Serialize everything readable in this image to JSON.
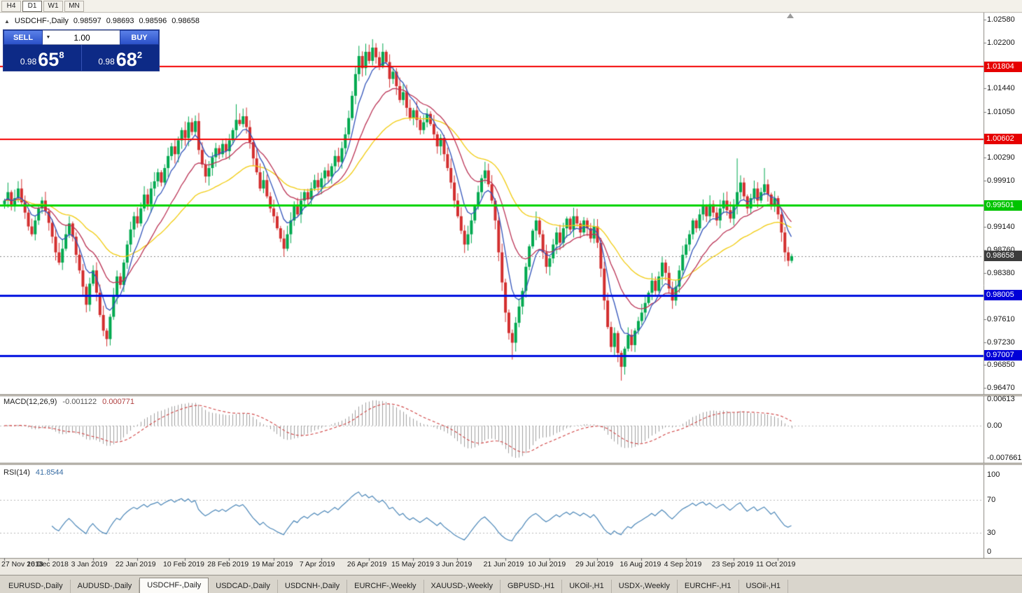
{
  "toolbar": {
    "periods": [
      {
        "label": "H4",
        "active": false
      },
      {
        "label": "D1",
        "active": true
      },
      {
        "label": "W1",
        "active": false
      },
      {
        "label": "MN",
        "active": false
      }
    ]
  },
  "icons": {
    "collapse": "▲",
    "dropdown": "▼"
  },
  "symbol_header": {
    "title": "USDCHF-,Daily",
    "open": "0.98597",
    "high": "0.98693",
    "low": "0.98596",
    "close": "0.98658"
  },
  "trade_panel": {
    "sell_label": "SELL",
    "buy_label": "BUY",
    "volume": "1.00",
    "sell_price": {
      "small": "0.98",
      "big": "65",
      "sup": "8"
    },
    "buy_price": {
      "small": "0.98",
      "big": "68",
      "sup": "2"
    }
  },
  "price_axis": {
    "ticks": [
      "1.02580",
      "1.02200",
      "1.01440",
      "1.01050",
      "1.00290",
      "0.99910",
      "0.99140",
      "0.98760",
      "0.98380",
      "0.97610",
      "0.97230",
      "0.96850",
      "0.96470"
    ],
    "badges": [
      {
        "value": "1.01804",
        "bg": "#e60000",
        "type": "resistance"
      },
      {
        "value": "1.00602",
        "bg": "#e60000",
        "type": "resistance"
      },
      {
        "value": "0.99501",
        "bg": "#00c400",
        "type": "pivot"
      },
      {
        "value": "0.98658",
        "bg": "#3c3c3c",
        "type": "current-price"
      },
      {
        "value": "0.98005",
        "bg": "#0000d8",
        "type": "support"
      },
      {
        "value": "0.97007",
        "bg": "#0000d8",
        "type": "support"
      }
    ]
  },
  "levels": [
    {
      "price": 1.01804,
      "color": "#f40000",
      "width": 2
    },
    {
      "price": 1.00602,
      "color": "#f40000",
      "width": 2
    },
    {
      "price": 0.99501,
      "color": "#00d400",
      "width": 3
    },
    {
      "price": 0.98005,
      "color": "#0010e0",
      "width": 3
    },
    {
      "price": 0.97007,
      "color": "#0010e0",
      "width": 3
    }
  ],
  "current_price": {
    "value": 0.98658,
    "label": "0.98658"
  },
  "macd_panel": {
    "label": "MACD(12,26,9)",
    "value_main": "-0.001122",
    "value_signal": "0.000771",
    "axis": [
      "0.00613",
      "0.00",
      "-0.0076612"
    ]
  },
  "rsi_panel": {
    "label": "RSI(14)",
    "value": "41.8544",
    "axis": [
      "100",
      "70",
      "30",
      "0"
    ],
    "levels": [
      70,
      30
    ]
  },
  "date_axis": {
    "labels": [
      {
        "text": "27 Nov 2018",
        "index": 0
      },
      {
        "text": "16 Dec 2018",
        "index": 13
      },
      {
        "text": "3 Jan 2019",
        "index": 26
      },
      {
        "text": "22 Jan 2019",
        "index": 39
      },
      {
        "text": "10 Feb 2019",
        "index": 53
      },
      {
        "text": "28 Feb 2019",
        "index": 66
      },
      {
        "text": "19 Mar 2019",
        "index": 79
      },
      {
        "text": "7 Apr 2019",
        "index": 93
      },
      {
        "text": "26 Apr 2019",
        "index": 107
      },
      {
        "text": "15 May 2019",
        "index": 120
      },
      {
        "text": "3 Jun 2019",
        "index": 133
      },
      {
        "text": "21 Jun 2019",
        "index": 147
      },
      {
        "text": "10 Jul 2019",
        "index": 160
      },
      {
        "text": "29 Jul 2019",
        "index": 174
      },
      {
        "text": "16 Aug 2019",
        "index": 187
      },
      {
        "text": "4 Sep 2019",
        "index": 200
      },
      {
        "text": "23 Sep 2019",
        "index": 214
      },
      {
        "text": "11 Oct 2019",
        "index": 227
      }
    ]
  },
  "tabs": {
    "items": [
      {
        "label": "EURUSD-,Daily",
        "active": false
      },
      {
        "label": "AUDUSD-,Daily",
        "active": false
      },
      {
        "label": "USDCHF-,Daily",
        "active": true
      },
      {
        "label": "USDCAD-,Daily",
        "active": false
      },
      {
        "label": "USDCNH-,Daily",
        "active": false
      },
      {
        "label": "EURCHF-,Weekly",
        "active": false
      },
      {
        "label": "XAUUSD-,Weekly",
        "active": false
      },
      {
        "label": "GBPUSD-,H1",
        "active": false
      },
      {
        "label": "UKOil-,H1",
        "active": false
      },
      {
        "label": "USDX-,Weekly",
        "active": false
      },
      {
        "label": "EURCHF-,H1",
        "active": false
      },
      {
        "label": "USOil-,H1",
        "active": false
      }
    ]
  },
  "chart_data": {
    "type": "candlestick",
    "symbol": "USDCHF",
    "timeframe": "Daily",
    "x_start_label": "27 Nov 2018",
    "x_end_label": "11 Oct 2019",
    "price_range": [
      0.964,
      1.0262
    ],
    "first_open": 0.9952,
    "closes": [
      0.9958,
      0.9972,
      0.9948,
      0.9962,
      0.9978,
      0.9955,
      0.9938,
      0.9915,
      0.9902,
      0.9925,
      0.9945,
      0.9958,
      0.994,
      0.9921,
      0.9898,
      0.9872,
      0.9855,
      0.9878,
      0.9902,
      0.992,
      0.9898,
      0.9868,
      0.9842,
      0.9815,
      0.9785,
      0.982,
      0.9842,
      0.9805,
      0.9768,
      0.9742,
      0.9728,
      0.9765,
      0.98,
      0.9832,
      0.9818,
      0.9855,
      0.9885,
      0.991,
      0.9932,
      0.992,
      0.9945,
      0.9968,
      0.9952,
      0.9978,
      0.999,
      1.0005,
      0.9988,
      1.0012,
      1.0032,
      1.0048,
      1.0035,
      1.0058,
      1.0075,
      1.0062,
      1.0088,
      1.0072,
      1.009,
      1.0042,
      1.0018,
      0.9998,
      1.0012,
      1.003,
      1.0045,
      1.0035,
      1.0052,
      1.004,
      1.0058,
      1.0075,
      1.0092,
      1.0085,
      1.0098,
      1.008,
      1.0055,
      1.0028,
      1.0005,
      0.9978,
      0.9992,
      0.9965,
      0.9945,
      0.9932,
      0.9912,
      0.9895,
      0.9878,
      0.9902,
      0.9925,
      0.9948,
      0.9935,
      0.9958,
      0.9972,
      0.996,
      0.9978,
      0.9992,
      0.998,
      0.9995,
      1.0008,
      0.9998,
      1.0015,
      1.0032,
      1.0022,
      1.0045,
      1.0068,
      1.0095,
      1.0132,
      1.0168,
      1.0198,
      1.0178,
      1.0205,
      1.019,
      1.0212,
      1.0196,
      1.0182,
      1.0205,
      1.0188,
      1.016,
      1.0172,
      1.0148,
      1.0125,
      1.0138,
      1.0112,
      1.0095,
      1.0108,
      1.0092,
      1.0075,
      1.0088,
      1.0102,
      1.0085,
      1.0068,
      1.0048,
      1.0062,
      1.0035,
      1.0012,
      0.9988,
      0.9958,
      0.9932,
      0.9908,
      0.9885,
      0.9902,
      0.9925,
      0.9948,
      0.9972,
      0.9995,
      1.0008,
      0.9985,
      0.9958,
      0.9925,
      0.9872,
      0.9822,
      0.9772,
      0.9738,
      0.9722,
      0.9755,
      0.9782,
      0.9808,
      0.9848,
      0.9882,
      0.9908,
      0.9925,
      0.9902,
      0.9872,
      0.9848,
      0.9862,
      0.9885,
      0.9905,
      0.9888,
      0.9912,
      0.9928,
      0.991,
      0.9932,
      0.992,
      0.9905,
      0.9925,
      0.9912,
      0.9895,
      0.9915,
      0.9888,
      0.9845,
      0.9792,
      0.9748,
      0.9715,
      0.9738,
      0.9705,
      0.9682,
      0.9712,
      0.9735,
      0.9718,
      0.9742,
      0.9758,
      0.9772,
      0.9788,
      0.9805,
      0.9825,
      0.9808,
      0.9832,
      0.9855,
      0.9838,
      0.9812,
      0.9792,
      0.9815,
      0.9842,
      0.9868,
      0.9885,
      0.9902,
      0.9925,
      0.9912,
      0.9935,
      0.9948,
      0.9932,
      0.9952,
      0.9938,
      0.9925,
      0.9945,
      0.9958,
      0.9942,
      0.9928,
      0.9948,
      0.9972,
      0.9988,
      0.9965,
      0.9945,
      0.9962,
      0.9978,
      0.9958,
      0.9972,
      0.9985,
      0.9968,
      0.9948,
      0.9962,
      0.9935,
      0.9905,
      0.9872,
      0.9858,
      0.98658
    ],
    "wick_overrides": {
      "30": {
        "low": 0.9716
      },
      "68": {
        "high": 1.0118
      },
      "104": {
        "high": 1.0215
      },
      "108": {
        "high": 1.0226
      },
      "149": {
        "low": 0.9694
      },
      "181": {
        "low": 0.9659
      },
      "215": {
        "high": 1.0028
      },
      "223": {
        "high": 1.0012
      },
      "230": {
        "low": 0.9849
      }
    },
    "colors": {
      "up_candle": "#00a94f",
      "down_candle": "#d32f2f",
      "ma_fast": "#3355bb",
      "ma_medium": "#bb3355",
      "ma_slow": "#f2cc0f",
      "macd_histogram": "#a0a0a0",
      "macd_signal": "#d04040",
      "rsi_line": "#4a86b8"
    },
    "moving_averages": [
      {
        "name": "fast",
        "period": 7,
        "color": "#3355bb"
      },
      {
        "name": "medium",
        "period": 18,
        "color": "#bb3355"
      },
      {
        "name": "slow",
        "period": 40,
        "color": "#f2cc0f"
      }
    ],
    "indicators": {
      "macd": {
        "fast": 12,
        "slow": 26,
        "signal": 9,
        "last_main": -0.001122,
        "last_signal": 0.000771
      },
      "rsi": {
        "period": 14,
        "last": 41.8544,
        "levels": [
          70,
          30
        ]
      }
    }
  }
}
